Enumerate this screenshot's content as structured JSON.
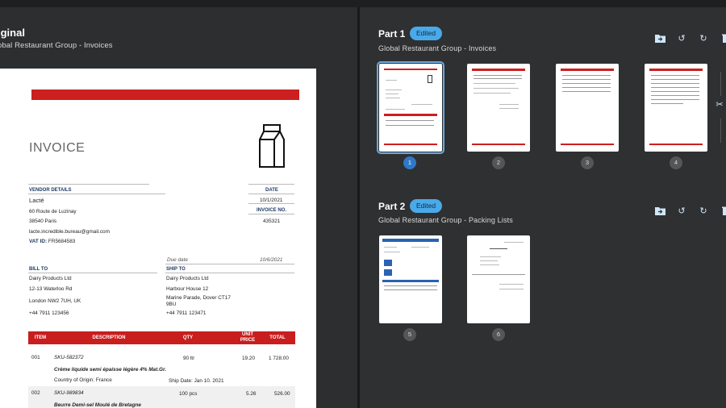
{
  "left": {
    "title": "iginal",
    "subtitle": "obal Restaurant Group - Invoices"
  },
  "invoice": {
    "heading": "INVOICE",
    "vendor_label": "VENDOR DETAILS",
    "vendor_name": "Lacté",
    "vendor_addr1": "60 Route de Luzinay",
    "vendor_addr2": "38540 Paris",
    "vendor_email": "lacte.incredible.bureau@gmail.com",
    "vat_label": "VAT ID:",
    "vat_value": "FR5684583",
    "date_label": "DATE",
    "date_value": "10/1/2021",
    "invno_label": "INVOICE NO.",
    "invno_value": "435321",
    "due_label": "Due date",
    "due_value": "10/6/2021",
    "bill_label": "BILL TO",
    "bill_name": "Dairy Products Ltd",
    "bill_addr1": "12-13 Waterloo Rd",
    "bill_addr2": "London NW2 7UH, UK",
    "bill_phone": "+44 7911 123456",
    "ship_label": "SHIP TO",
    "ship_name": "Dairy Products Ltd",
    "ship_addr1": "Harbour House 12",
    "ship_addr2": "Marine Parade, Dover CT17",
    "ship_addr3": "9BU",
    "ship_phone": "+44 7911 123471",
    "col_item": "ITEM",
    "col_desc": "DESCRIPTION",
    "col_qty": "QTY",
    "col_unit1": "UNIT",
    "col_unit2": "PRICE",
    "col_total": "TOTAL",
    "r1_item": "001",
    "r1_sku": "SKU-582372",
    "r1_qty": "90 ltr",
    "r1_price": "19.20",
    "r1_total": "1 728.00",
    "r1_name": "Crème liquide semi épaisse légère 4% Mat.Gr.",
    "r1_origin": "Country of Origin: France",
    "r1_ship": "Ship Date: Jan 10. 2021",
    "r2_item": "002",
    "r2_sku": "SKU-989834",
    "r2_qty": "100 pcs",
    "r2_price": "5.26",
    "r2_total": "526.00",
    "r2_name": "Beurre Demi-sel Moulé de Bretagne"
  },
  "parts": [
    {
      "title": "Part 1",
      "badge": "Edited",
      "subtitle": "Global Restaurant Group - Invoices",
      "pages": [
        "1",
        "2",
        "3",
        "4"
      ]
    },
    {
      "title": "Part 2",
      "badge": "Edited",
      "subtitle": "Global Restaurant Group - Packing Lists",
      "pages": [
        "5",
        "6"
      ]
    }
  ],
  "icons": [
    "folder-move-icon",
    "rotate-left-icon",
    "rotate-right-icon",
    "delete-icon",
    "scissors-icon"
  ],
  "colors": {
    "accent": "#4aa9e8",
    "invoice_red": "#cc1f1f",
    "page_selected": "#2f78c8"
  }
}
